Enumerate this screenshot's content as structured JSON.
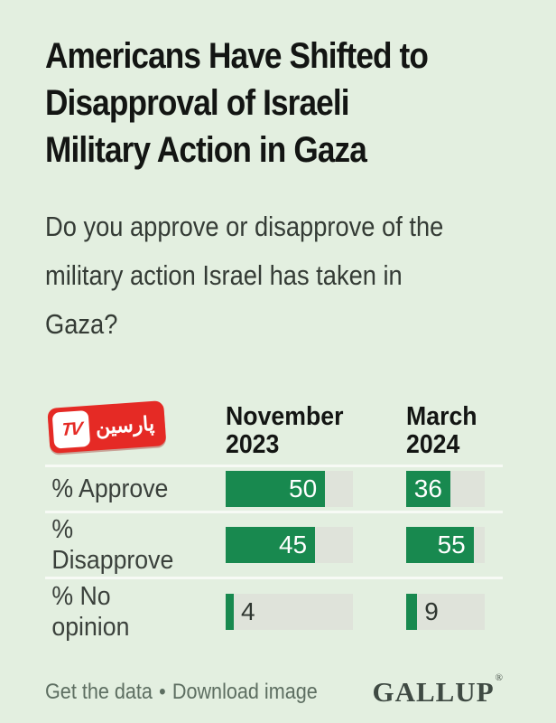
{
  "page": {
    "background": "#e3efe0"
  },
  "header": {
    "title_lines": [
      "Americans Have Shifted to",
      "Disapproval of Israeli",
      "Military Action in Gaza"
    ],
    "question_lines": [
      "Do you approve or disapprove of the",
      "military action Israel has taken in",
      "Gaza?"
    ]
  },
  "logo": {
    "tv": "TV",
    "name": "پارسین"
  },
  "chart_data": {
    "type": "bar",
    "title": "Americans Have Shifted to Disapproval of Israeli Military Action in Gaza",
    "subtitle": "Do you approve or disapprove of the military action Israel has taken in Gaza?",
    "categories": [
      "% Approve",
      "% Disapprove",
      "% No opinion"
    ],
    "series": [
      {
        "name": "November 2023",
        "values": [
          50,
          45,
          4
        ]
      },
      {
        "name": "March 2024",
        "values": [
          36,
          55,
          9
        ]
      }
    ],
    "column_header_lines": [
      [
        "November",
        "2023"
      ],
      [
        "March",
        "2024"
      ]
    ],
    "scale_max": 64,
    "inside_label_min": 20,
    "bar_color": "#18894f",
    "track_color": "#dfe3da",
    "grid": "off",
    "legend_position": "none"
  },
  "table": {
    "label_lines": [
      [
        "% Approve",
        ""
      ],
      [
        "%",
        "Disapprove"
      ],
      [
        "% No",
        "opinion"
      ]
    ]
  },
  "footer": {
    "link1": "Get the data",
    "bullet": "•",
    "link2": "Download image",
    "brand": "GALLUP",
    "registered": "®"
  }
}
